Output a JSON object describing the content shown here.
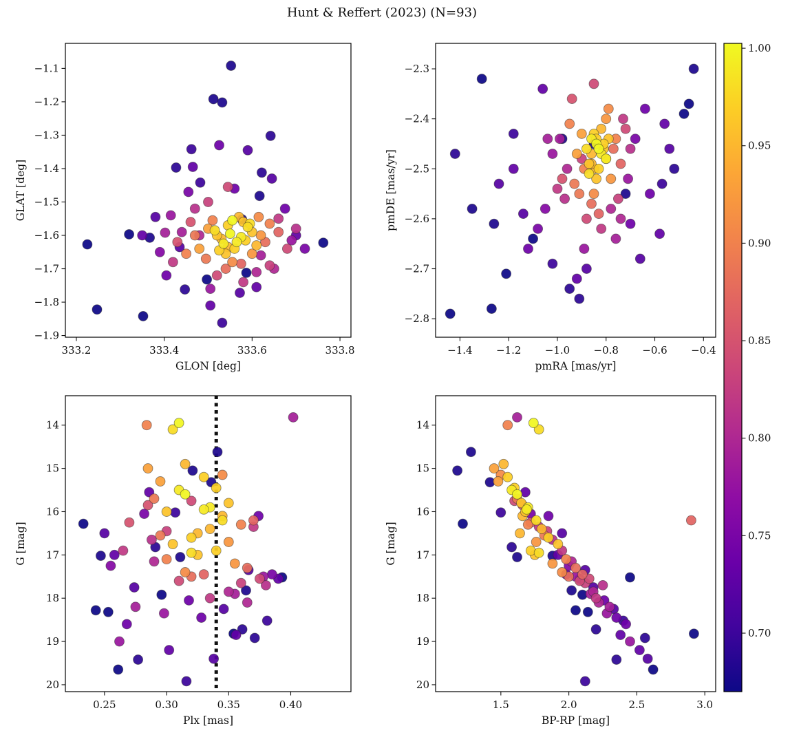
{
  "figure": {
    "title": "Hunt & Reffert (2023) (N=93)"
  },
  "chart_data": {
    "type": "scatter",
    "title": "Hunt & Reffert (2023) (N=93)",
    "n_points": 93,
    "colormap": "plasma",
    "color_by": "membership_probability",
    "colorbar": {
      "vmin": 0.67,
      "vmax": 1.0025,
      "tick_values": [
        1.0,
        0.95,
        0.9,
        0.85,
        0.8,
        0.75,
        0.7
      ],
      "tick_labels": [
        "1.00",
        "0.95",
        "0.90",
        "0.85",
        "0.80",
        "0.75",
        "0.70"
      ]
    },
    "panels": [
      {
        "id": "glon-glat",
        "xkey": "glon",
        "ykey": "glat",
        "xlabel": "GLON [deg]",
        "ylabel": "GLAT [deg]",
        "xlim": [
          333.175,
          333.825
        ],
        "ylim": [
          -1.905,
          -1.025
        ],
        "invert_y": false,
        "xticks": [
          333.2,
          333.4,
          333.6,
          333.8
        ],
        "xtick_labels": [
          "333.2",
          "333.4",
          "333.6",
          "333.8"
        ],
        "yticks": [
          -1.9,
          -1.8,
          -1.7,
          -1.6,
          -1.5,
          -1.4,
          -1.3,
          -1.2,
          -1.1
        ],
        "ytick_labels": [
          "−1.9",
          "−1.8",
          "−1.7",
          "−1.6",
          "−1.5",
          "−1.4",
          "−1.3",
          "−1.2",
          "−1.1"
        ]
      },
      {
        "id": "pmra-pmde",
        "xkey": "pmra",
        "ykey": "pmde",
        "xlabel": "pmRA [mas/yr]",
        "ylabel": "pmDE [mas/yr]",
        "xlim": [
          -1.5,
          -0.35
        ],
        "ylim": [
          -2.837,
          -2.249
        ],
        "invert_y": false,
        "xticks": [
          -1.4,
          -1.2,
          -1.0,
          -0.8,
          -0.6,
          -0.4
        ],
        "xtick_labels": [
          "−1.4",
          "−1.2",
          "−1.0",
          "−0.8",
          "−0.6",
          "−0.4"
        ],
        "yticks": [
          -2.8,
          -2.7,
          -2.6,
          -2.5,
          -2.4,
          -2.3
        ],
        "ytick_labels": [
          "−2.8",
          "−2.7",
          "−2.6",
          "−2.5",
          "−2.4",
          "−2.3"
        ]
      },
      {
        "id": "plx-g",
        "xkey": "plx",
        "ykey": "g",
        "xlabel": "Plx [mas]",
        "ylabel": "G [mag]",
        "xlim": [
          0.2185,
          0.4485
        ],
        "ylim": [
          13.32,
          20.16
        ],
        "invert_y": true,
        "xticks": [
          0.25,
          0.3,
          0.35,
          0.4
        ],
        "xtick_labels": [
          "0.25",
          "0.30",
          "0.35",
          "0.40"
        ],
        "yticks": [
          14,
          15,
          16,
          17,
          18,
          19,
          20
        ],
        "ytick_labels": [
          "14",
          "15",
          "16",
          "17",
          "18",
          "19",
          "20"
        ],
        "vline": {
          "x": 0.34,
          "style": "dotted",
          "color": "#111111"
        }
      },
      {
        "id": "bprp-g",
        "xkey": "bprp",
        "ykey": "g",
        "xlabel": "BP-RP [mag]",
        "ylabel": "G [mag]",
        "xlim": [
          1.02,
          3.08
        ],
        "ylim": [
          13.32,
          20.16
        ],
        "invert_y": true,
        "xticks": [
          1.5,
          2.0,
          2.5,
          3.0
        ],
        "xtick_labels": [
          "1.5",
          "2.0",
          "2.5",
          "3.0"
        ],
        "yticks": [
          14,
          15,
          16,
          17,
          18,
          19,
          20
        ],
        "ytick_labels": [
          "14",
          "15",
          "16",
          "17",
          "18",
          "19",
          "20"
        ]
      }
    ],
    "columns": [
      "glon",
      "glat",
      "pmra",
      "pmde",
      "plx",
      "g",
      "bprp",
      "p"
    ],
    "points": [
      [
        333.555,
        -1.555,
        -0.84,
        -2.45,
        0.315,
        15.6,
        1.62,
        1.0
      ],
      [
        333.575,
        -1.605,
        -0.82,
        -2.47,
        0.335,
        15.9,
        1.7,
        0.99
      ],
      [
        333.535,
        -1.625,
        -0.86,
        -2.44,
        0.31,
        15.5,
        1.58,
        0.99
      ],
      [
        333.595,
        -1.565,
        -0.8,
        -2.48,
        0.345,
        16.2,
        1.76,
        0.98
      ],
      [
        333.515,
        -1.585,
        -0.88,
        -2.46,
        0.305,
        14.1,
        1.78,
        0.98
      ],
      [
        333.56,
        -1.64,
        -0.83,
        -2.5,
        0.32,
        16.6,
        1.85,
        0.97
      ],
      [
        333.545,
        -1.57,
        -0.85,
        -2.43,
        0.33,
        15.2,
        1.55,
        0.97
      ],
      [
        333.585,
        -1.615,
        -0.81,
        -2.45,
        0.34,
        16.9,
        1.72,
        0.97
      ],
      [
        333.52,
        -1.6,
        -0.87,
        -2.49,
        0.3,
        16.0,
        1.68,
        0.96
      ],
      [
        333.6,
        -1.59,
        -0.79,
        -2.44,
        0.35,
        15.8,
        1.65,
        0.96
      ],
      [
        333.54,
        -1.655,
        -0.84,
        -2.52,
        0.325,
        17.0,
        1.75,
        0.96
      ],
      [
        333.57,
        -1.545,
        -0.86,
        -2.47,
        0.315,
        14.9,
        1.52,
        0.95
      ],
      [
        333.53,
        -1.61,
        -0.82,
        -2.42,
        0.335,
        16.4,
        1.8,
        0.95
      ],
      [
        333.61,
        -1.63,
        -0.85,
        -2.5,
        0.345,
        16.1,
        1.66,
        0.95
      ],
      [
        333.55,
        -1.595,
        -0.83,
        -2.46,
        0.31,
        13.95,
        1.74,
        1.0
      ],
      [
        333.565,
        -1.62,
        -0.8,
        -2.48,
        0.33,
        15.95,
        1.69,
        0.99
      ],
      [
        333.59,
        -1.575,
        -0.87,
        -2.51,
        0.32,
        16.95,
        1.78,
        0.98
      ],
      [
        333.525,
        -1.645,
        -0.84,
        -2.44,
        0.34,
        15.45,
        1.6,
        0.97
      ],
      [
        333.58,
        -1.56,
        -0.81,
        -2.46,
        0.305,
        16.75,
        1.92,
        0.96
      ],
      [
        333.545,
        -1.635,
        -0.86,
        -2.49,
        0.325,
        16.5,
        1.64,
        0.95
      ],
      [
        333.5,
        -1.58,
        -0.9,
        -2.43,
        0.295,
        15.3,
        1.48,
        0.93
      ],
      [
        333.62,
        -1.6,
        -0.78,
        -2.52,
        0.355,
        17.2,
        1.88,
        0.92
      ],
      [
        333.555,
        -1.68,
        -0.85,
        -2.55,
        0.315,
        17.4,
        1.95,
        0.91
      ],
      [
        333.48,
        -1.64,
        -0.92,
        -2.47,
        0.285,
        15.0,
        1.45,
        0.93
      ],
      [
        333.64,
        -1.565,
        -0.76,
        -2.44,
        0.36,
        16.3,
        1.7,
        0.9
      ],
      [
        333.51,
        -1.555,
        -0.89,
        -2.5,
        0.3,
        17.1,
        1.98,
        0.9
      ],
      [
        333.6,
        -1.655,
        -0.8,
        -2.4,
        0.35,
        16.7,
        1.76,
        0.92
      ],
      [
        333.47,
        -1.6,
        -0.93,
        -2.53,
        0.29,
        15.7,
        1.62,
        0.89
      ],
      [
        333.63,
        -1.62,
        -0.77,
        -2.46,
        0.365,
        17.3,
        2.05,
        0.88
      ],
      [
        333.54,
        -1.7,
        -0.86,
        -2.57,
        0.32,
        17.5,
        2.0,
        0.88
      ],
      [
        333.45,
        -1.655,
        -0.95,
        -2.41,
        0.284,
        14.0,
        1.55,
        0.9
      ],
      [
        333.66,
        -1.59,
        -0.74,
        -2.49,
        0.37,
        16.2,
        2.9,
        0.87
      ],
      [
        333.495,
        -1.67,
        -0.91,
        -2.55,
        0.295,
        16.55,
        1.82,
        0.89
      ],
      [
        333.615,
        -1.545,
        -0.79,
        -2.38,
        0.345,
        15.15,
        1.5,
        0.91
      ],
      [
        333.575,
        -1.685,
        -0.83,
        -2.59,
        0.33,
        17.45,
        2.1,
        0.87
      ],
      [
        333.43,
        -1.62,
        -0.98,
        -2.52,
        0.27,
        16.25,
        1.72,
        0.85
      ],
      [
        333.68,
        -1.64,
        -0.72,
        -2.42,
        0.375,
        17.55,
        2.15,
        0.84
      ],
      [
        333.52,
        -1.72,
        -0.88,
        -2.6,
        0.31,
        17.6,
        2.08,
        0.84
      ],
      [
        333.46,
        -1.56,
        -0.94,
        -2.36,
        0.285,
        15.85,
        1.66,
        0.85
      ],
      [
        333.64,
        -1.69,
        -0.75,
        -2.56,
        0.36,
        17.65,
        2.12,
        0.83
      ],
      [
        333.5,
        -1.5,
        -0.9,
        -2.48,
        0.3,
        16.45,
        1.84,
        0.83
      ],
      [
        333.58,
        -1.74,
        -0.82,
        -2.62,
        0.335,
        18.0,
        2.2,
        0.82
      ],
      [
        333.42,
        -1.68,
        -1.0,
        -2.54,
        0.265,
        16.9,
        1.95,
        0.82
      ],
      [
        333.7,
        -1.58,
        -0.7,
        -2.46,
        0.38,
        17.7,
        2.25,
        0.81
      ],
      [
        333.545,
        -1.455,
        -0.85,
        -2.33,
        0.32,
        15.75,
        1.6,
        0.84
      ],
      [
        333.61,
        -1.71,
        -0.78,
        -2.58,
        0.35,
        17.85,
        2.18,
        0.8
      ],
      [
        333.48,
        -1.6,
        -0.96,
        -2.5,
        0.29,
        17.15,
        2.02,
        0.8
      ],
      [
        333.66,
        -1.55,
        -0.73,
        -2.4,
        0.37,
        16.35,
        1.78,
        0.82
      ],
      [
        333.44,
        -1.59,
        -0.99,
        -2.44,
        0.275,
        18.2,
        2.3,
        0.79
      ],
      [
        333.62,
        -1.66,
        -0.76,
        -2.64,
        0.355,
        17.9,
        2.16,
        0.79
      ],
      [
        333.505,
        -1.76,
        -0.89,
        -2.66,
        0.298,
        18.35,
        2.28,
        0.78
      ],
      [
        333.69,
        -1.615,
        -0.71,
        -2.52,
        0.378,
        17.5,
        2.05,
        0.78
      ],
      [
        333.415,
        -1.54,
        -1.02,
        -2.47,
        0.262,
        19.0,
        2.45,
        0.78
      ],
      [
        333.65,
        -1.7,
        -0.74,
        -2.6,
        0.365,
        18.1,
        2.22,
        0.8
      ],
      [
        333.47,
        -1.52,
        -0.97,
        -2.56,
        0.288,
        16.65,
        1.88,
        0.81
      ],
      [
        333.39,
        -1.65,
        -1.05,
        -2.58,
        0.255,
        17.25,
        2.0,
        0.76
      ],
      [
        333.72,
        -1.64,
        -0.68,
        -2.44,
        0.385,
        17.45,
        1.98,
        0.75
      ],
      [
        333.455,
        -1.47,
        -1.08,
        -2.62,
        0.282,
        16.05,
        1.72,
        0.75
      ],
      [
        333.56,
        -1.46,
        -0.64,
        -2.38,
        0.328,
        18.45,
        2.35,
        0.74
      ],
      [
        333.405,
        -1.72,
        -1.12,
        -2.66,
        0.268,
        18.6,
        2.42,
        0.74
      ],
      [
        333.675,
        -1.52,
        -0.62,
        -2.55,
        0.374,
        16.1,
        1.85,
        0.74
      ],
      [
        333.35,
        -1.6,
        -1.18,
        -2.5,
        0.258,
        17.0,
        1.92,
        0.73
      ],
      [
        333.61,
        -1.755,
        -0.58,
        -2.63,
        0.356,
        18.85,
        2.38,
        0.73
      ],
      [
        333.505,
        -1.81,
        -0.92,
        -2.72,
        0.302,
        19.2,
        2.52,
        0.73
      ],
      [
        333.465,
        -1.395,
        -1.06,
        -2.34,
        0.286,
        15.55,
        1.68,
        0.73
      ],
      [
        333.645,
        -1.43,
        -0.54,
        -2.46,
        0.366,
        17.35,
        2.12,
        0.72
      ],
      [
        333.38,
        -1.545,
        -1.14,
        -2.59,
        0.25,
        16.5,
        1.95,
        0.72
      ],
      [
        333.59,
        -1.345,
        -0.66,
        -2.68,
        0.346,
        18.25,
        2.33,
        0.72
      ],
      [
        333.435,
        -1.635,
        -1.24,
        -2.53,
        0.274,
        17.75,
        2.18,
        0.72
      ],
      [
        333.7,
        -1.6,
        -0.56,
        -2.41,
        0.39,
        17.55,
        2.08,
        0.73
      ],
      [
        333.525,
        -1.33,
        -0.7,
        -2.61,
        0.318,
        18.05,
        2.26,
        0.74
      ],
      [
        333.402,
        -1.592,
        -1.04,
        -2.44,
        0.402,
        13.82,
        1.62,
        0.79
      ],
      [
        333.572,
        -1.772,
        -0.88,
        -2.7,
        0.338,
        19.4,
        2.58,
        0.72
      ],
      [
        333.225,
        -1.627,
        -1.44,
        -2.79,
        0.233,
        16.28,
        1.22,
        0.66
      ],
      [
        333.247,
        -1.822,
        -1.27,
        -2.78,
        0.253,
        18.32,
        2.14,
        0.67
      ],
      [
        333.32,
        -1.597,
        -1.31,
        -2.32,
        0.261,
        19.65,
        2.62,
        0.67
      ],
      [
        333.352,
        -1.842,
        -1.21,
        -2.71,
        0.243,
        18.28,
        2.05,
        0.67
      ],
      [
        333.762,
        -1.622,
        -0.46,
        -2.37,
        0.393,
        17.52,
        2.45,
        0.67
      ],
      [
        333.552,
        -1.092,
        -0.85,
        -2.45,
        0.341,
        14.62,
        1.28,
        0.68
      ],
      [
        333.512,
        -1.192,
        -0.72,
        -2.55,
        0.321,
        15.05,
        1.18,
        0.68
      ],
      [
        333.532,
        -1.202,
        -0.98,
        -2.44,
        0.311,
        17.05,
        1.62,
        0.68
      ],
      [
        333.622,
        -1.412,
        -0.52,
        -2.5,
        0.361,
        18.72,
        2.2,
        0.69
      ],
      [
        333.642,
        -1.302,
        -0.91,
        -2.76,
        0.371,
        18.92,
        2.56,
        0.69
      ],
      [
        333.462,
        -1.342,
        -1.02,
        -2.69,
        0.381,
        18.52,
        2.4,
        0.7
      ],
      [
        333.482,
        -1.442,
        -0.57,
        -2.53,
        0.307,
        16.02,
        1.5,
        0.7
      ],
      [
        333.427,
        -1.397,
        -1.42,
        -2.47,
        0.291,
        16.82,
        1.58,
        0.69
      ],
      [
        333.367,
        -1.607,
        -1.26,
        -2.61,
        0.247,
        17.02,
        1.88,
        0.68
      ],
      [
        333.587,
        -1.712,
        -0.48,
        -2.39,
        0.354,
        18.82,
        2.92,
        0.66
      ],
      [
        333.497,
        -1.732,
        -1.1,
        -2.64,
        0.296,
        17.92,
        2.1,
        0.67
      ],
      [
        333.577,
        -1.552,
        -0.44,
        -2.3,
        0.336,
        15.32,
        1.42,
        0.68
      ],
      [
        333.617,
        -1.482,
        -1.35,
        -2.58,
        0.364,
        17.82,
        2.02,
        0.68
      ],
      [
        333.447,
        -1.762,
        -0.95,
        -2.74,
        0.277,
        19.42,
        2.35,
        0.69
      ],
      [
        333.532,
        -1.862,
        -1.18,
        -2.43,
        0.316,
        19.92,
        2.12,
        0.7
      ]
    ]
  }
}
